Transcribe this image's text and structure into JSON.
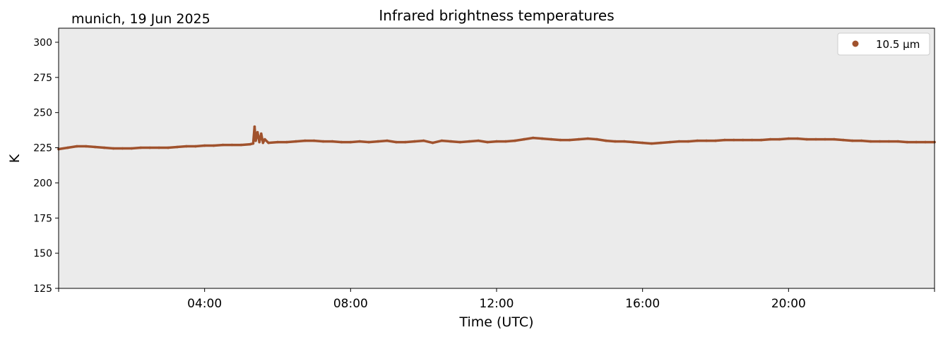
{
  "chart_data": {
    "type": "scatter",
    "title": "Infrared brightness temperatures",
    "subtitle": "munich, 19 Jun 2025",
    "xlabel": "Time (UTC)",
    "ylabel": "K",
    "xlim": [
      0,
      24
    ],
    "ylim": [
      125,
      310
    ],
    "x_ticks": [
      4,
      8,
      12,
      16,
      20
    ],
    "x_tick_labels": [
      "04:00",
      "08:00",
      "12:00",
      "16:00",
      "20:00"
    ],
    "y_ticks": [
      125,
      150,
      175,
      200,
      225,
      250,
      275,
      300
    ],
    "y_tick_labels": [
      "125",
      "150",
      "175",
      "200",
      "225",
      "250",
      "275",
      "300"
    ],
    "grid": false,
    "background_color": "#ebebeb",
    "legend_position": "top-right",
    "series": [
      {
        "name": "10.5 µm",
        "color": "#a0522d",
        "x": [
          0.0,
          0.25,
          0.5,
          0.75,
          1.0,
          1.25,
          1.5,
          1.75,
          2.0,
          2.25,
          2.5,
          2.75,
          3.0,
          3.25,
          3.5,
          3.75,
          4.0,
          4.25,
          4.5,
          4.75,
          5.0,
          5.25,
          5.33,
          5.37,
          5.4,
          5.45,
          5.5,
          5.55,
          5.6,
          5.65,
          5.75,
          6.0,
          6.25,
          6.5,
          6.75,
          7.0,
          7.25,
          7.5,
          7.75,
          8.0,
          8.25,
          8.5,
          8.75,
          9.0,
          9.25,
          9.5,
          9.75,
          10.0,
          10.25,
          10.5,
          10.75,
          11.0,
          11.25,
          11.5,
          11.75,
          12.0,
          12.25,
          12.5,
          12.75,
          13.0,
          13.25,
          13.5,
          13.75,
          14.0,
          14.25,
          14.5,
          14.75,
          15.0,
          15.25,
          15.5,
          15.75,
          16.0,
          16.25,
          16.5,
          16.75,
          17.0,
          17.25,
          17.5,
          17.75,
          18.0,
          18.25,
          18.5,
          18.75,
          19.0,
          19.25,
          19.5,
          19.75,
          20.0,
          20.25,
          20.5,
          20.75,
          21.0,
          21.25,
          21.5,
          21.75,
          22.0,
          22.25,
          22.5,
          22.75,
          23.0,
          23.25,
          23.5,
          23.75,
          24.0
        ],
        "y": [
          224,
          225,
          226,
          226,
          225.5,
          225,
          224.5,
          224.5,
          224.5,
          225,
          225,
          225,
          225,
          225.5,
          226,
          226,
          226.5,
          226.5,
          227,
          227,
          227,
          227.5,
          228,
          240,
          230,
          236,
          229,
          235,
          228.5,
          231,
          228.5,
          229,
          229,
          229.5,
          230,
          230,
          229.5,
          229.5,
          229,
          229,
          229.5,
          229,
          229.5,
          230,
          229,
          229,
          229.5,
          230,
          228.5,
          230,
          229.5,
          229,
          229.5,
          230,
          229,
          229.5,
          229.5,
          230,
          231,
          232,
          231.5,
          231,
          230.5,
          230.5,
          231,
          231.5,
          231,
          230,
          229.5,
          229.5,
          229,
          228.5,
          228,
          228.5,
          229,
          229.5,
          229.5,
          230,
          230,
          230,
          230.5,
          230.5,
          230.5,
          230.5,
          230.5,
          231,
          231,
          231.5,
          231.5,
          231,
          231,
          231,
          231,
          230.5,
          230,
          230,
          229.5,
          229.5,
          229.5,
          229.5,
          229,
          229,
          229,
          229
        ]
      }
    ]
  }
}
